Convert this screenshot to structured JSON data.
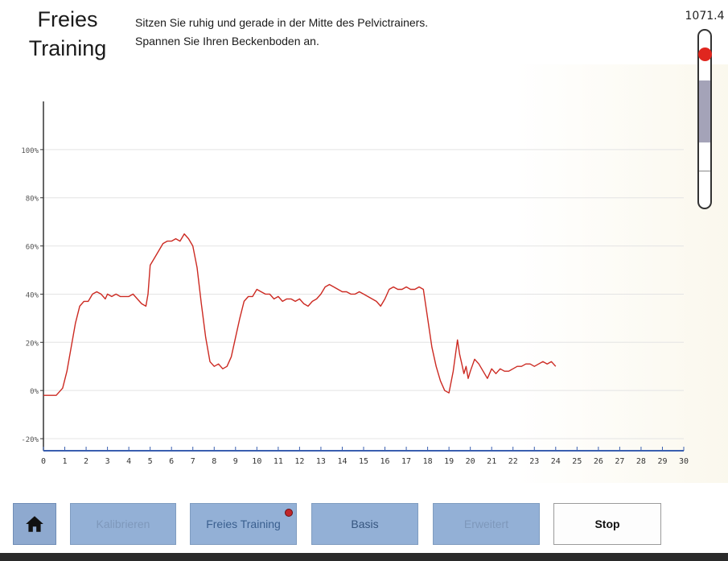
{
  "header": {
    "title_line1": "Freies",
    "title_line2": "Training",
    "instruction_line1": "Sitzen Sie ruhig und gerade in der Mitte des Pelvictrainers.",
    "instruction_line2": "Spannen Sie Ihren Beckenboden an."
  },
  "gauge": {
    "value_text": "1071.4",
    "level_fraction": 0.87,
    "band_fraction_top": 0.72,
    "band_fraction_bottom": 0.37,
    "tick_fraction": 0.1,
    "marker_color": "#e0261f",
    "band_color": "#a4a3b8"
  },
  "toolbar": {
    "home_icon": "home-icon",
    "kalibrieren_label": "Kalibrieren",
    "freies_training_label": "Freies Training",
    "basis_label": "Basis",
    "erweitert_label": "Erweitert",
    "stop_label": "Stop",
    "button_color": "#93b0d6",
    "indicator_color": "#c0262a"
  },
  "chart_data": {
    "type": "line",
    "title": "",
    "xlabel": "",
    "ylabel": "",
    "xlim": [
      0,
      30
    ],
    "ylim": [
      -25,
      120
    ],
    "x_ticks": [
      "0",
      "1",
      "2",
      "3",
      "4",
      "5",
      "6",
      "7",
      "8",
      "9",
      "10",
      "11",
      "12",
      "13",
      "14",
      "15",
      "16",
      "17",
      "18",
      "19",
      "20",
      "21",
      "22",
      "23",
      "24",
      "25",
      "26",
      "27",
      "28",
      "29",
      "30"
    ],
    "y_ticks": [
      {
        "value": 100,
        "label": "100%"
      },
      {
        "value": 80,
        "label": "80%"
      },
      {
        "value": 60,
        "label": "60%"
      },
      {
        "value": 40,
        "label": "40%"
      },
      {
        "value": 20,
        "label": "20%"
      },
      {
        "value": 0,
        "label": "0%"
      },
      {
        "value": -20,
        "label": "-20%"
      }
    ],
    "grid": true,
    "line_color": "#cc2a22",
    "series": [
      {
        "x": [
          0.0,
          0.3,
          0.6,
          0.9,
          1.1,
          1.3,
          1.5,
          1.7,
          1.9,
          2.1,
          2.3,
          2.5,
          2.7,
          2.9,
          3.0,
          3.2,
          3.4,
          3.6,
          3.8,
          4.0,
          4.2,
          4.4,
          4.6,
          4.8,
          4.9,
          5.0,
          5.2,
          5.4,
          5.6,
          5.8,
          6.0,
          6.2,
          6.4,
          6.6,
          6.8,
          7.0,
          7.2,
          7.4,
          7.6,
          7.8,
          8.0,
          8.2,
          8.4,
          8.6,
          8.8,
          9.0,
          9.2,
          9.4,
          9.6,
          9.8,
          10.0,
          10.2,
          10.4,
          10.6,
          10.8,
          11.0,
          11.2,
          11.4,
          11.6,
          11.8,
          12.0,
          12.2,
          12.4,
          12.6,
          12.8,
          13.0,
          13.2,
          13.4,
          13.6,
          13.8,
          14.0,
          14.2,
          14.4,
          14.6,
          14.8,
          15.0,
          15.2,
          15.4,
          15.6,
          15.8,
          16.0,
          16.2,
          16.4,
          16.6,
          16.8,
          17.0,
          17.2,
          17.4,
          17.6,
          17.8,
          18.0,
          18.2,
          18.4,
          18.6,
          18.8,
          19.0,
          19.2,
          19.4,
          19.5,
          19.6,
          19.7,
          19.8,
          19.9,
          20.0,
          20.2,
          20.4,
          20.6,
          20.8,
          21.0,
          21.2,
          21.4,
          21.6,
          21.8,
          22.0,
          22.2,
          22.4,
          22.6,
          22.8,
          23.0,
          23.2,
          23.4,
          23.6,
          23.8,
          24.0
        ],
        "y": [
          -2,
          -2,
          -2,
          1,
          8,
          18,
          28,
          35,
          37,
          37,
          40,
          41,
          40,
          38,
          40,
          39,
          40,
          39,
          39,
          39,
          40,
          38,
          36,
          35,
          40,
          52,
          55,
          58,
          61,
          62,
          62,
          63,
          62,
          65,
          63,
          60,
          51,
          36,
          22,
          12,
          10,
          11,
          9,
          10,
          14,
          22,
          30,
          37,
          39,
          39,
          42,
          41,
          40,
          40,
          38,
          39,
          37,
          38,
          38,
          37,
          38,
          36,
          35,
          37,
          38,
          40,
          43,
          44,
          43,
          42,
          41,
          41,
          40,
          40,
          41,
          40,
          39,
          38,
          37,
          35,
          38,
          42,
          43,
          42,
          42,
          43,
          42,
          42,
          43,
          42,
          30,
          18,
          10,
          4,
          0,
          -1,
          8,
          21,
          15,
          11,
          7,
          10,
          5,
          8,
          13,
          11,
          8,
          5,
          9,
          7,
          9,
          8,
          8,
          9,
          10,
          10,
          11,
          11,
          10,
          11,
          12,
          11,
          12,
          10
        ]
      }
    ]
  }
}
